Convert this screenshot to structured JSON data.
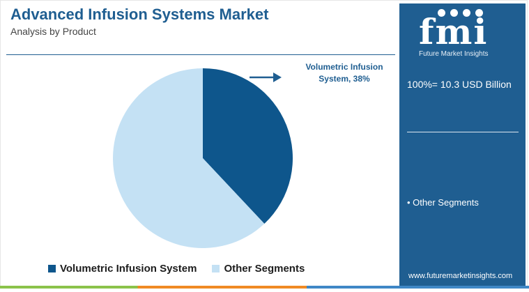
{
  "header": {
    "title": "Advanced Infusion Systems Market",
    "subtitle": "Analysis by Product"
  },
  "chart_data": {
    "type": "pie",
    "title": "Advanced Infusion Systems Market",
    "subtitle": "Analysis by Product",
    "slices": [
      {
        "label": "Volumetric Infusion System",
        "value": 38,
        "color": "#0e568c"
      },
      {
        "label": "Other Segments",
        "value": 62,
        "color": "#c4e1f4"
      }
    ],
    "callout": "Volumetric Infusion System, 38%",
    "legend_position": "bottom"
  },
  "legend": {
    "items": [
      {
        "label": "Volumetric Infusion System",
        "color": "#0e568c"
      },
      {
        "label": "Other Segments",
        "color": "#c4e1f4"
      }
    ]
  },
  "sidebar": {
    "logo_text": "fmi",
    "logo_tagline": "Future Market Insights",
    "total_label": "100%= 10.3 USD Billion",
    "segment_label": "• Other Segments",
    "url": "www.futuremarketinsights.com",
    "background": "#1f5e91"
  }
}
